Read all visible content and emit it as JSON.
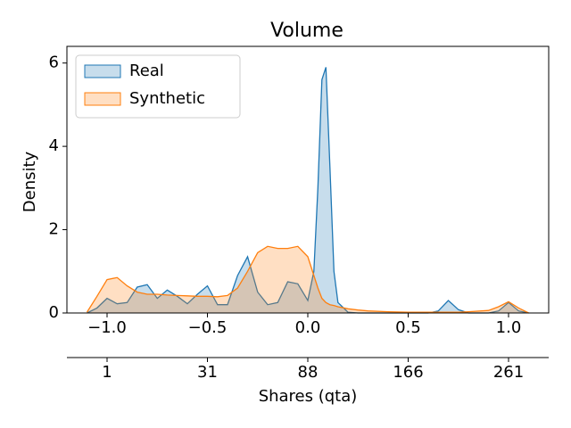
{
  "chart_data": {
    "type": "kde",
    "title": "Volume",
    "ylabel": "Density",
    "x": [
      -1.1,
      -1.05,
      -1.0,
      -0.95,
      -0.9,
      -0.85,
      -0.8,
      -0.75,
      -0.7,
      -0.65,
      -0.6,
      -0.55,
      -0.5,
      -0.45,
      -0.4,
      -0.35,
      -0.3,
      -0.25,
      -0.2,
      -0.15,
      -0.1,
      -0.05,
      0.0,
      0.03,
      0.05,
      0.07,
      0.09,
      0.11,
      0.13,
      0.15,
      0.2,
      0.25,
      0.3,
      0.4,
      0.5,
      0.6,
      0.65,
      0.7,
      0.75,
      0.8,
      0.9,
      0.95,
      1.0,
      1.05,
      1.1
    ],
    "series": [
      {
        "name": "Real",
        "color": "#1f77b4",
        "values": [
          0,
          0.12,
          0.35,
          0.22,
          0.25,
          0.62,
          0.68,
          0.35,
          0.55,
          0.4,
          0.22,
          0.45,
          0.65,
          0.2,
          0.2,
          0.9,
          1.35,
          0.5,
          0.2,
          0.25,
          0.75,
          0.7,
          0.3,
          1.0,
          3.0,
          5.6,
          5.9,
          3.5,
          1.0,
          0.25,
          0.02,
          0,
          0,
          0,
          0,
          0,
          0.05,
          0.3,
          0.08,
          0,
          0,
          0.05,
          0.25,
          0.05,
          0
        ]
      },
      {
        "name": "Synthetic",
        "color": "#ff7f0e",
        "values": [
          0.02,
          0.4,
          0.8,
          0.85,
          0.65,
          0.5,
          0.45,
          0.45,
          0.43,
          0.42,
          0.41,
          0.4,
          0.4,
          0.39,
          0.42,
          0.6,
          1.0,
          1.45,
          1.6,
          1.55,
          1.55,
          1.6,
          1.35,
          0.9,
          0.6,
          0.35,
          0.25,
          0.2,
          0.18,
          0.15,
          0.1,
          0.07,
          0.05,
          0.03,
          0.02,
          0.02,
          0.02,
          0.02,
          0.02,
          0.03,
          0.06,
          0.15,
          0.27,
          0.12,
          0
        ]
      }
    ],
    "xlim": [
      -1.2,
      1.2
    ],
    "xticks": [
      {
        "value": -1.0,
        "label": "−1.0"
      },
      {
        "value": -0.5,
        "label": "−0.5"
      },
      {
        "value": 0.0,
        "label": "0.0"
      },
      {
        "value": 0.5,
        "label": "0.5"
      },
      {
        "value": 1.0,
        "label": "1.0"
      }
    ],
    "ylim": [
      0,
      6.4
    ],
    "yticks": [
      0,
      2,
      4,
      6
    ],
    "x2label": "Shares (qta)",
    "x2ticks": [
      {
        "value": -1.0,
        "label": "1"
      },
      {
        "value": -0.5,
        "label": "31"
      },
      {
        "value": 0.0,
        "label": "88"
      },
      {
        "value": 0.5,
        "label": "166"
      },
      {
        "value": 1.0,
        "label": "261"
      }
    ],
    "legend": "upper left"
  }
}
